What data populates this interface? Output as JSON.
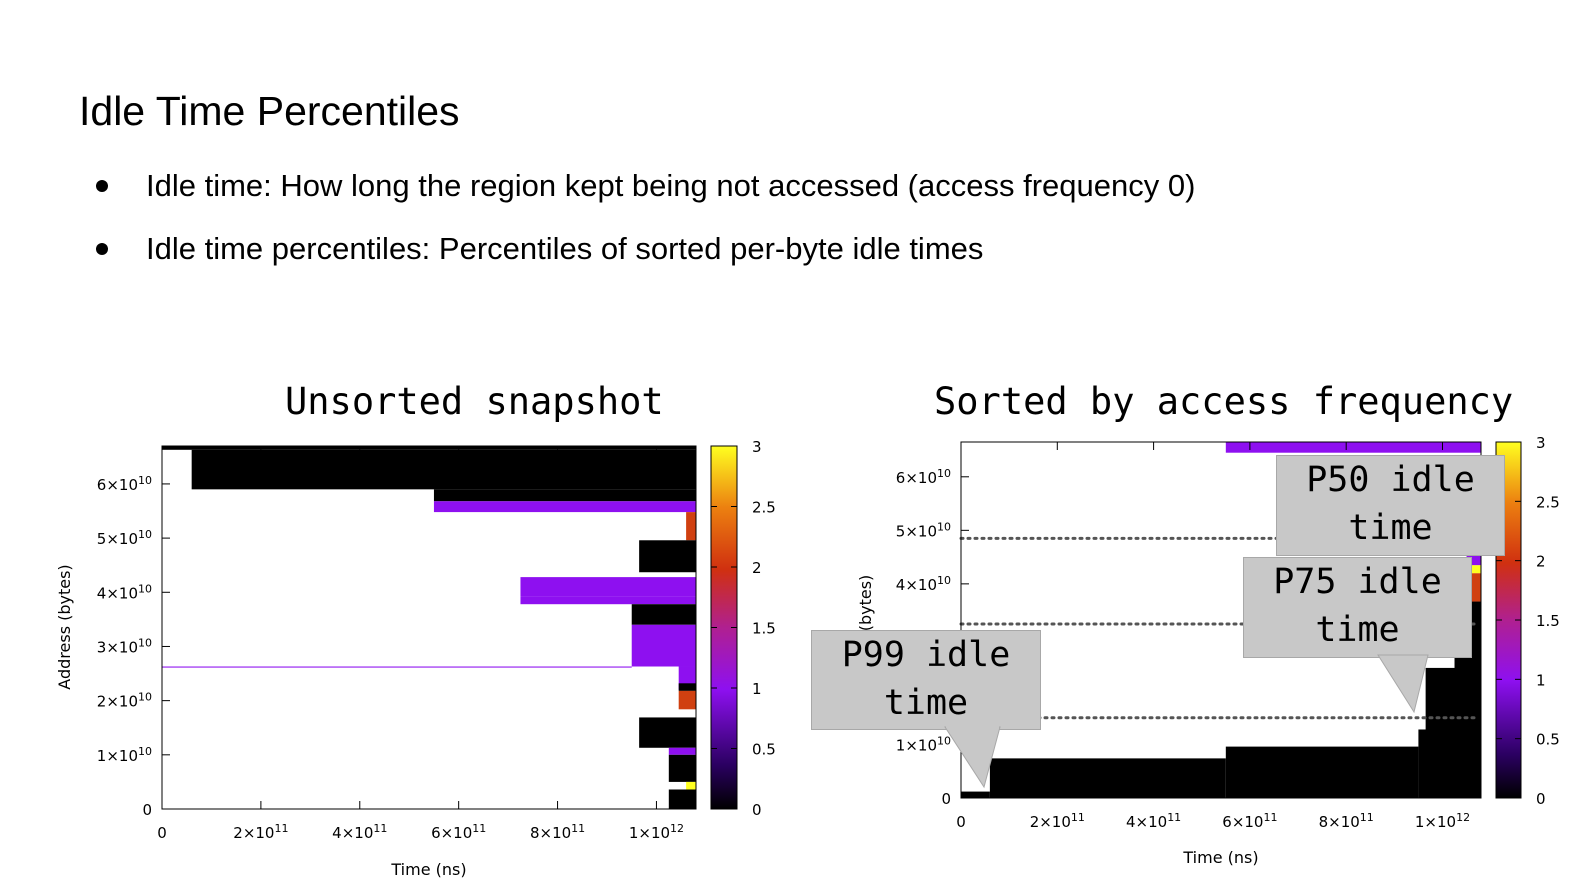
{
  "slide": {
    "title": "Idle Time Percentiles",
    "bullets": [
      "Idle time: How long the region kept being not accessed (access frequency 0)",
      "Idle time percentiles: Percentiles of sorted per-byte idle times"
    ]
  },
  "chart_data": [
    {
      "type": "heatmap",
      "title": "Unsorted snapshot",
      "xlabel": "Time (ns)",
      "ylabel": "Address (bytes)",
      "xlim": [
        0,
        1080000000000
      ],
      "ylim": [
        0,
        67000000000
      ],
      "xticks": [
        0,
        200000000000,
        400000000000,
        600000000000,
        800000000000,
        1000000000000
      ],
      "xtick_labels": [
        "0",
        "2×10^11",
        "4×10^11",
        "6×10^11",
        "8×10^11",
        "1×10^12"
      ],
      "yticks": [
        0,
        10000000000,
        20000000000,
        30000000000,
        40000000000,
        50000000000,
        60000000000
      ],
      "ytick_labels": [
        "0",
        "1×10^10",
        "2×10^10",
        "3×10^10",
        "4×10^10",
        "5×10^10",
        "6×10^10"
      ],
      "colorbar": {
        "min": 0,
        "max": 3,
        "ticks": [
          "0",
          "0.5",
          "1",
          "1.5",
          "2",
          "2.5",
          "3"
        ]
      },
      "regions": [
        {
          "x0": 0,
          "x1": 1080000000000,
          "y0": 66300000000,
          "y1": 67000000000,
          "v": 0
        },
        {
          "x0": 60000000000,
          "x1": 1080000000000,
          "y0": 59000000000,
          "y1": 66300000000,
          "v": 0
        },
        {
          "x0": 550000000000,
          "x1": 1080000000000,
          "y0": 56800000000,
          "y1": 59000000000,
          "v": 0
        },
        {
          "x0": 550000000000,
          "x1": 1080000000000,
          "y0": 54800000000,
          "y1": 56800000000,
          "v": 1
        },
        {
          "x0": 1060000000000,
          "x1": 1080000000000,
          "y0": 49600000000,
          "y1": 54800000000,
          "v": 2
        },
        {
          "x0": 965000000000,
          "x1": 1080000000000,
          "y0": 43700000000,
          "y1": 49600000000,
          "v": 0
        },
        {
          "x0": 725000000000,
          "x1": 1080000000000,
          "y0": 37800000000,
          "y1": 39200000000,
          "v": 1
        },
        {
          "x0": 725000000000,
          "x1": 1080000000000,
          "y0": 39200000000,
          "y1": 42800000000,
          "v": 1
        },
        {
          "x0": 950000000000,
          "x1": 1080000000000,
          "y0": 34000000000,
          "y1": 37800000000,
          "v": 0
        },
        {
          "x0": 950000000000,
          "x1": 1080000000000,
          "y0": 26300000000,
          "y1": 34000000000,
          "v": 1
        },
        {
          "x0": 0,
          "x1": 950000000000,
          "y0": 26100000000,
          "y1": 26300000000,
          "v": 1
        },
        {
          "x0": 1045000000000,
          "x1": 1080000000000,
          "y0": 22000000000,
          "y1": 26300000000,
          "v": 1
        },
        {
          "x0": 1045000000000,
          "x1": 1080000000000,
          "y0": 21800000000,
          "y1": 23200000000,
          "v": 0
        },
        {
          "x0": 1045000000000,
          "x1": 1080000000000,
          "y0": 18400000000,
          "y1": 21800000000,
          "v": 2
        },
        {
          "x0": 965000000000,
          "x1": 1080000000000,
          "y0": 11300000000,
          "y1": 16900000000,
          "v": 0
        },
        {
          "x0": 1025000000000,
          "x1": 1080000000000,
          "y0": 10000000000,
          "y1": 11300000000,
          "v": 1
        },
        {
          "x0": 1025000000000,
          "x1": 1080000000000,
          "y0": 5000000000,
          "y1": 10000000000,
          "v": 0
        },
        {
          "x0": 1060000000000,
          "x1": 1080000000000,
          "y0": 3600000000,
          "y1": 5000000000,
          "v": 3
        },
        {
          "x0": 1025000000000,
          "x1": 1080000000000,
          "y0": 0,
          "y1": 3600000000,
          "v": 0
        }
      ]
    },
    {
      "type": "heatmap",
      "title": "Sorted by access frequency",
      "xlabel": "Time (ns)",
      "ylabel": "(bytes)",
      "xlim": [
        0,
        1080000000000
      ],
      "ylim": [
        0,
        66500000000
      ],
      "xticks": [
        0,
        200000000000,
        400000000000,
        600000000000,
        800000000000,
        1000000000000
      ],
      "xtick_labels": [
        "0",
        "2×10^11",
        "4×10^11",
        "6×10^11",
        "8×10^11",
        "1×10^12"
      ],
      "yticks": [
        0,
        10000000000,
        20000000000,
        30000000000,
        40000000000,
        50000000000,
        60000000000
      ],
      "ytick_labels": [
        "0",
        "1×10^10",
        "",
        "",
        "4×10^10",
        "5×10^10",
        "6×10^10"
      ],
      "colorbar": {
        "min": 0,
        "max": 3,
        "ticks": [
          "0",
          "0.5",
          "1",
          "1.5",
          "2",
          "2.5",
          "3"
        ]
      },
      "regions": [
        {
          "x0": 0,
          "x1": 60000000000,
          "y0": 0,
          "y1": 1200000000,
          "v": 0
        },
        {
          "x0": 60000000000,
          "x1": 550000000000,
          "y0": 0,
          "y1": 7400000000,
          "v": 0
        },
        {
          "x0": 550000000000,
          "x1": 950000000000,
          "y0": 0,
          "y1": 9600000000,
          "v": 0
        },
        {
          "x0": 950000000000,
          "x1": 1080000000000,
          "y0": 0,
          "y1": 12800000000,
          "v": 0
        },
        {
          "x0": 965000000000,
          "x1": 1080000000000,
          "y0": 0,
          "y1": 24300000000,
          "v": 0
        },
        {
          "x0": 1025000000000,
          "x1": 1080000000000,
          "y0": 0,
          "y1": 26200000000,
          "v": 0
        },
        {
          "x0": 1060000000000,
          "x1": 1080000000000,
          "y0": 0,
          "y1": 36700000000,
          "v": 0
        },
        {
          "x0": 1060000000000,
          "x1": 1080000000000,
          "y0": 36700000000,
          "y1": 42000000000,
          "v": 2
        },
        {
          "x0": 1060000000000,
          "x1": 1080000000000,
          "y0": 42000000000,
          "y1": 43500000000,
          "v": 3
        },
        {
          "x0": 1050000000000,
          "x1": 1080000000000,
          "y0": 43500000000,
          "y1": 48500000000,
          "v": 1
        },
        {
          "x0": 550000000000,
          "x1": 1080000000000,
          "y0": 64500000000,
          "y1": 66500000000,
          "v": 1
        }
      ],
      "percentile_lines": [
        {
          "label": "P50 idle time",
          "y": 48500000000
        },
        {
          "label": "P75 idle time",
          "y": 32500000000
        },
        {
          "label": "P99 idle time",
          "y": 15000000000
        }
      ]
    }
  ]
}
